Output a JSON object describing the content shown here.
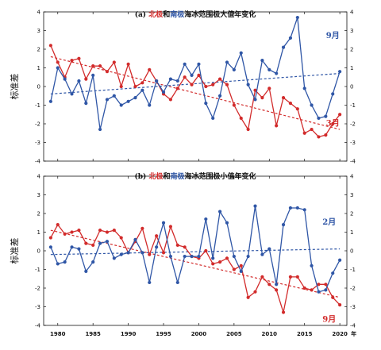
{
  "colors": {
    "red": "#d22b2b",
    "blue": "#2f56a6",
    "axis": "#111111"
  },
  "x_axis": {
    "min": 1978,
    "max": 2021,
    "ticks": [
      1980,
      1985,
      1990,
      1995,
      2000,
      2005,
      2010,
      2015,
      2020
    ],
    "tick_labels": [
      "1980",
      "1985",
      "1990",
      "1995",
      "2000",
      "2005",
      "2010",
      "2015",
      "2020"
    ],
    "unit_label": "年"
  },
  "chart_data": [
    {
      "type": "line",
      "title_parts": [
        {
          "text": "(a) ",
          "color": "#111111"
        },
        {
          "text": "北极",
          "color": "#d22b2b"
        },
        {
          "text": "和",
          "color": "#111111"
        },
        {
          "text": "南极",
          "color": "#2f56a6"
        },
        {
          "text": "海冰范围极大值年变化",
          "color": "#111111"
        }
      ],
      "ylabel": "标准差",
      "ylim": [
        -4,
        4
      ],
      "yticks": [
        -4,
        -3,
        -2,
        -1,
        0,
        1,
        2,
        3,
        4
      ],
      "ytick_labels": [
        "-4",
        "-3",
        "-2",
        "-1",
        "0",
        "1",
        "2",
        "3",
        "4"
      ],
      "x": [
        1979,
        1980,
        1981,
        1982,
        1983,
        1984,
        1985,
        1986,
        1987,
        1988,
        1989,
        1990,
        1991,
        1992,
        1993,
        1994,
        1995,
        1996,
        1997,
        1998,
        1999,
        2000,
        2001,
        2002,
        2003,
        2004,
        2005,
        2006,
        2007,
        2008,
        2009,
        2010,
        2011,
        2012,
        2013,
        2014,
        2015,
        2016,
        2017,
        2018,
        2019,
        2020
      ],
      "series": [
        {
          "name": "3月",
          "color": "#d22b2b",
          "label_at": [
            2019,
            -2.1
          ],
          "values": [
            2.2,
            1.3,
            0.5,
            1.4,
            1.5,
            0.4,
            1.1,
            1.1,
            0.8,
            1.3,
            0.0,
            1.2,
            0.0,
            0.2,
            0.9,
            0.3,
            -0.4,
            -0.7,
            -0.1,
            0.5,
            0.1,
            0.6,
            0.0,
            0.1,
            0.4,
            0.1,
            -1.0,
            -1.7,
            -2.3,
            -0.2,
            -0.6,
            -0.1,
            -2.1,
            -0.6,
            -0.9,
            -1.2,
            -2.5,
            -2.3,
            -2.7,
            -2.6,
            -2.0,
            -1.5
          ],
          "trend": {
            "x": [
              1979,
              2020
            ],
            "y": [
              1.6,
              -2.3
            ]
          }
        },
        {
          "name": "9月",
          "color": "#2f56a6",
          "label_at": [
            2019,
            2.6
          ],
          "values": [
            -0.8,
            1.0,
            0.4,
            -0.4,
            0.3,
            -0.9,
            0.6,
            -2.3,
            -0.7,
            -0.5,
            -1.0,
            -0.8,
            -0.6,
            -0.2,
            -1.0,
            0.3,
            -0.3,
            0.4,
            0.3,
            1.2,
            0.6,
            1.2,
            -0.9,
            -1.7,
            -0.5,
            1.3,
            0.9,
            1.8,
            0.1,
            -0.7,
            1.4,
            0.9,
            0.7,
            2.1,
            2.6,
            3.7,
            -0.1,
            -1.0,
            -1.7,
            -1.6,
            -0.4,
            0.8
          ],
          "trend": {
            "x": [
              1979,
              2020
            ],
            "y": [
              -0.4,
              0.7
            ]
          }
        }
      ]
    },
    {
      "type": "line",
      "title_parts": [
        {
          "text": "(b) ",
          "color": "#111111"
        },
        {
          "text": "北极",
          "color": "#d22b2b"
        },
        {
          "text": "和",
          "color": "#111111"
        },
        {
          "text": "南极",
          "color": "#2f56a6"
        },
        {
          "text": "海冰范围极小值年变化",
          "color": "#111111"
        }
      ],
      "ylabel": "标准差",
      "ylim": [
        -4,
        4
      ],
      "yticks": [
        -4,
        -3,
        -2,
        -1,
        0,
        1,
        2,
        3,
        4
      ],
      "ytick_labels": [
        "-4",
        "-3",
        "-2",
        "-1",
        "0",
        "1",
        "2",
        "3",
        "4"
      ],
      "x": [
        1979,
        1980,
        1981,
        1982,
        1983,
        1984,
        1985,
        1986,
        1987,
        1988,
        1989,
        1990,
        1991,
        1992,
        1993,
        1994,
        1995,
        1996,
        1997,
        1998,
        1999,
        2000,
        2001,
        2002,
        2003,
        2004,
        2005,
        2006,
        2007,
        2008,
        2009,
        2010,
        2011,
        2012,
        2013,
        2014,
        2015,
        2016,
        2017,
        2018,
        2019,
        2020
      ],
      "series": [
        {
          "name": "9月",
          "color": "#d22b2b",
          "label_at": [
            2018.5,
            -3.8
          ],
          "values": [
            0.7,
            1.4,
            0.9,
            1.0,
            1.1,
            0.4,
            0.3,
            1.1,
            1.0,
            1.1,
            0.7,
            -0.1,
            0.5,
            1.2,
            -0.2,
            0.8,
            -0.1,
            1.3,
            0.3,
            0.2,
            -0.3,
            -0.4,
            0.0,
            -0.7,
            -0.6,
            -0.4,
            -1.0,
            -0.8,
            -2.5,
            -2.2,
            -1.4,
            -1.8,
            -2.1,
            -3.3,
            -1.4,
            -1.4,
            -2.0,
            -2.1,
            -1.8,
            -1.8,
            -2.5,
            -2.9
          ],
          "trend": {
            "x": [
              1979,
              2020
            ],
            "y": [
              1.1,
              -2.5
            ]
          }
        },
        {
          "name": "2月",
          "color": "#2f56a6",
          "label_at": [
            2018.5,
            1.4
          ],
          "values": [
            0.2,
            -0.7,
            -0.6,
            0.2,
            0.1,
            -1.1,
            -0.6,
            0.4,
            0.5,
            -0.4,
            -0.2,
            -0.1,
            0.6,
            -0.1,
            -1.7,
            0.2,
            1.5,
            -0.3,
            -1.7,
            -0.3,
            -0.3,
            -0.3,
            1.7,
            -0.4,
            2.1,
            1.5,
            -0.3,
            -1.1,
            -0.3,
            2.4,
            -0.2,
            0.1,
            -1.8,
            1.4,
            2.3,
            2.3,
            2.2,
            -0.8,
            -2.2,
            -2.1,
            -1.2,
            -0.5
          ],
          "trend": {
            "x": [
              1979,
              2020
            ],
            "y": [
              -0.2,
              0.1
            ]
          }
        }
      ]
    }
  ]
}
